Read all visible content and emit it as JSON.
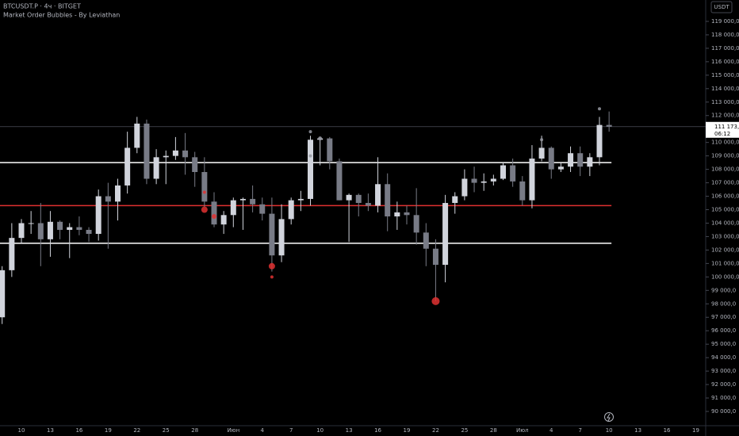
{
  "header": {
    "symbol": "BTCUSDT.P · 4ч · BITGET",
    "indicator": "Market Order Bubbles - By Leviathan",
    "currency": "USDT"
  },
  "chart_data": {
    "type": "candlestick",
    "categories": [
      null,
      null,
      "10",
      null,
      null,
      "13",
      null,
      null,
      "16",
      null,
      null,
      "19",
      null,
      null,
      "22",
      null,
      null,
      "25",
      null,
      null,
      "28",
      null,
      null,
      null,
      "Июн",
      null,
      null,
      "4",
      null,
      null,
      "7",
      null,
      null,
      "10",
      null,
      null,
      "13",
      null,
      null,
      "16",
      null,
      null,
      "19",
      null,
      null,
      "22",
      null,
      null,
      "25",
      null,
      null,
      "28",
      null,
      null,
      "Июл",
      null,
      null,
      "4",
      null,
      null,
      "7",
      null,
      null,
      "10",
      null,
      null,
      "13",
      null,
      null,
      "16",
      null,
      null,
      "19"
    ],
    "open": [
      97000,
      100500,
      102900,
      104000,
      104000,
      102800,
      104100,
      103500,
      103700,
      103500,
      103200,
      106000,
      105600,
      106800,
      109600,
      111400,
      107300,
      108900,
      109000,
      109400,
      108900,
      107800,
      105600,
      103900,
      104600,
      105700,
      105800,
      105400,
      104700,
      101600,
      104300,
      105700,
      105800,
      110200,
      110300,
      108600,
      105700,
      106100,
      105500,
      105300,
      106900,
      104500,
      104800,
      104600,
      103300,
      102100,
      100900,
      105500,
      106000,
      107300,
      107000,
      107100,
      107300,
      108300,
      107100,
      105700,
      108800,
      109600,
      108000,
      108200,
      109200,
      108200,
      108900,
      111300,
      null,
      null,
      null,
      null,
      null,
      null,
      null,
      null,
      null
    ],
    "high": [
      100800,
      104000,
      104300,
      104900,
      105500,
      104900,
      104200,
      104000,
      104500,
      103700,
      106500,
      107000,
      107300,
      110800,
      111900,
      111700,
      109500,
      109400,
      110400,
      110700,
      109300,
      108900,
      106300,
      104900,
      105900,
      105900,
      106800,
      105900,
      105900,
      105400,
      105900,
      106400,
      110500,
      110400,
      110400,
      108800,
      106200,
      106200,
      106200,
      108900,
      107700,
      105600,
      105300,
      106600,
      104000,
      102800,
      106100,
      106300,
      108000,
      108200,
      107700,
      107600,
      108500,
      108800,
      107500,
      109800,
      110500,
      109700,
      108500,
      109700,
      109700,
      109200,
      111900,
      112300,
      null,
      null,
      null,
      null,
      null,
      null,
      null,
      null,
      null
    ],
    "low": [
      96500,
      100000,
      102500,
      103200,
      100800,
      101500,
      102800,
      101400,
      103100,
      102600,
      102700,
      102100,
      104200,
      106200,
      109200,
      106900,
      106900,
      106900,
      108700,
      107600,
      106700,
      105200,
      103700,
      103200,
      103700,
      103500,
      104800,
      104200,
      100400,
      101100,
      103900,
      104900,
      105300,
      108300,
      108000,
      105700,
      102600,
      104500,
      104900,
      104800,
      103400,
      103500,
      103900,
      102400,
      100800,
      98200,
      99600,
      104700,
      105700,
      106300,
      106400,
      106800,
      107200,
      106700,
      105300,
      105100,
      108600,
      107300,
      107800,
      107800,
      107500,
      107500,
      108300,
      110800,
      null,
      null,
      null,
      null,
      null,
      null,
      null,
      null,
      null
    ],
    "close": [
      100500,
      102900,
      104000,
      104000,
      102800,
      104100,
      103500,
      103700,
      103500,
      103200,
      106000,
      105600,
      106800,
      109600,
      111400,
      107300,
      108900,
      109000,
      109400,
      108900,
      107800,
      105600,
      103900,
      104600,
      105700,
      105800,
      105400,
      104700,
      101600,
      104300,
      105700,
      105800,
      110200,
      110300,
      108600,
      105700,
      106100,
      105500,
      105300,
      106900,
      104500,
      104800,
      104600,
      103300,
      102100,
      100900,
      105500,
      106000,
      107300,
      107000,
      107100,
      107300,
      108300,
      107100,
      105700,
      108800,
      109600,
      108000,
      108200,
      109200,
      108200,
      108900,
      111300,
      111173,
      null,
      null,
      null,
      null,
      null,
      null,
      null,
      null,
      null
    ],
    "up_color": "#d1d4dc",
    "down_color": "#787b86",
    "levels": [
      {
        "value": 108500,
        "color": "#ffffff"
      },
      {
        "value": 105300,
        "color": "#e03131"
      },
      {
        "value": 102500,
        "color": "#ffffff"
      }
    ],
    "last_price": {
      "value": 111173,
      "label": "111 173,0"
    },
    "countdown": "06:12",
    "bubbles": [
      {
        "category": 45,
        "price": 98200,
        "size": 5,
        "color": "#e03131"
      },
      {
        "category": 28,
        "price": 100800,
        "size": 4,
        "color": "#e03131"
      },
      {
        "category": 28,
        "price": 100000,
        "size": 2,
        "color": "#e03131"
      },
      {
        "category": 21,
        "price": 105000,
        "size": 4,
        "color": "#e03131"
      },
      {
        "category": 22,
        "price": 104500,
        "size": 3,
        "color": "#e03131"
      },
      {
        "category": 21,
        "price": 106300,
        "size": 2,
        "color": "#e03131"
      },
      {
        "category": 32,
        "price": 110800,
        "size": 2,
        "color": "#9598a1"
      },
      {
        "category": 33,
        "price": 110300,
        "size": 2.5,
        "color": "#9598a1"
      },
      {
        "category": 32,
        "price": 109000,
        "size": 2,
        "color": "#9598a1"
      },
      {
        "category": 56,
        "price": 110200,
        "size": 2,
        "color": "#9598a1"
      },
      {
        "category": 62,
        "price": 112500,
        "size": 2,
        "color": "#9598a1"
      }
    ],
    "ylim": [
      88940,
      120590
    ],
    "yticks": [
      {
        "value": 90000,
        "label": "90 000,0"
      },
      {
        "value": 91000,
        "label": "91 000,0"
      },
      {
        "value": 92000,
        "label": "92 000,0"
      },
      {
        "value": 93000,
        "label": "93 000,0"
      },
      {
        "value": 94000,
        "label": "94 000,0"
      },
      {
        "value": 95000,
        "label": "95 000,0"
      },
      {
        "value": 96000,
        "label": "96 000,0"
      },
      {
        "value": 97000,
        "label": "97 000,0"
      },
      {
        "value": 98000,
        "label": "98 000,0"
      },
      {
        "value": 99000,
        "label": "99 000,0"
      },
      {
        "value": 100000,
        "label": "100 000,0"
      },
      {
        "value": 101000,
        "label": "101 000,0"
      },
      {
        "value": 102000,
        "label": "102 000,0"
      },
      {
        "value": 103000,
        "label": "103 000,0"
      },
      {
        "value": 104000,
        "label": "104 000,0"
      },
      {
        "value": 105000,
        "label": "105 000,0"
      },
      {
        "value": 106000,
        "label": "106 000,0"
      },
      {
        "value": 107000,
        "label": "107 000,0"
      },
      {
        "value": 108000,
        "label": "108 000,0"
      },
      {
        "value": 109000,
        "label": "109 000,0"
      },
      {
        "value": 110000,
        "label": "110 000,0"
      },
      {
        "value": 111000,
        "label": "111 000,0"
      },
      {
        "value": 112000,
        "label": "112 000,0"
      },
      {
        "value": 113000,
        "label": "113 000,0"
      },
      {
        "value": 114000,
        "label": "114 000,0"
      },
      {
        "value": 115000,
        "label": "115 000,0"
      },
      {
        "value": 116000,
        "label": "116 000,0"
      },
      {
        "value": 117000,
        "label": "117 000,0"
      },
      {
        "value": 118000,
        "label": "118 000,0"
      },
      {
        "value": 119000,
        "label": "119 000,0"
      }
    ]
  }
}
